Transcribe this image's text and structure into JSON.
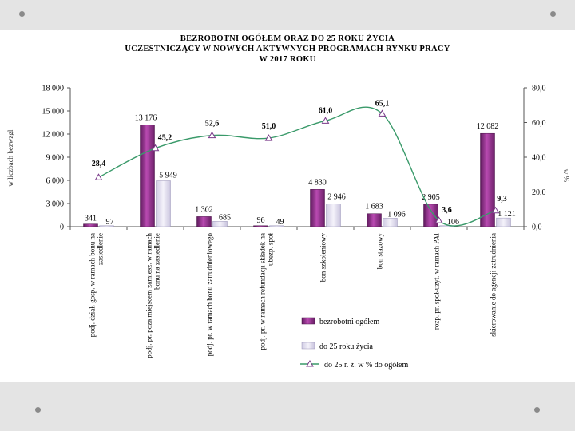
{
  "slide_background": "#e4e4e4",
  "chart_data": {
    "type": "bar",
    "title": [
      "BEZROBOTNI  OGÓŁEM  ORAZ  DO 25 ROKU ŻYCIA",
      "UCZESTNICZĄCY  W NOWYCH   AKTYWNYCH   PROGRAMACH   RYNKU   PRACY",
      "W  2017 ROKU"
    ],
    "ylabel": "w liczbach bezwzgl.",
    "y2label": "w %",
    "ylim": [
      0,
      18000
    ],
    "y2lim": [
      0,
      80
    ],
    "y_ticks": [
      "0",
      "3 000",
      "6 000",
      "9 000",
      "12 000",
      "15 000",
      "18 000"
    ],
    "y2_ticks": [
      "0,0",
      "20,0",
      "40,0",
      "60,0",
      "80,0"
    ],
    "grid": false,
    "legend_position": "bottom-right",
    "categories": [
      "podj. dział. gosp. w ramach bonu na zasiedlenie",
      "podj. pr. poza miejscem zamiesz. w ramach bonu na zasiedlenie",
      "podj. pr. w ramach bonu zatrudnieniowego",
      "podj. pr. w ramach refundacji składek na ubezp. społ",
      "bon szkoleniowy",
      "bon stażowy",
      "rozp. pr. społ-użyt. w ramach PAI",
      "skierowanie do agencji zatrudnienia"
    ],
    "series": [
      {
        "name": "bezrobotni ogółem",
        "color": "#8b2a86",
        "values": [
          341,
          13176,
          1302,
          96,
          4830,
          1683,
          2905,
          12082
        ],
        "labels": [
          "341",
          "13 176",
          "1 302",
          "96",
          "4 830",
          "1 683",
          "2 905",
          "12 082"
        ]
      },
      {
        "name": "do 25 roku życia",
        "color": "#dcd8ec",
        "values": [
          97,
          5949,
          685,
          49,
          2946,
          1096,
          106,
          1121
        ],
        "labels": [
          "97",
          "5 949",
          "685",
          "49",
          "2 946",
          "1 096",
          "106",
          "1 121"
        ]
      },
      {
        "name": "do 25 r. ż. w % do ogółem",
        "axis": "right",
        "type": "line",
        "color": "#3a9a6a",
        "marker": "triangle",
        "values": [
          28.4,
          45.2,
          52.6,
          51.0,
          61.0,
          65.1,
          3.6,
          9.3
        ],
        "labels": [
          "28,4",
          "45,2",
          "52,6",
          "51,0",
          "61,0",
          "65,1",
          "3,6",
          "9,3"
        ]
      }
    ]
  }
}
